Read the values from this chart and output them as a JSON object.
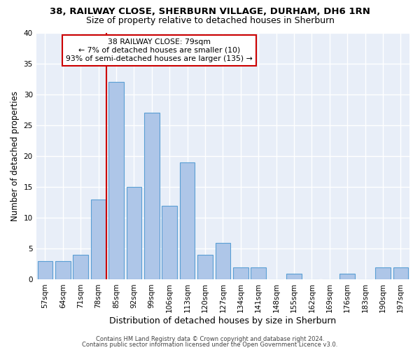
{
  "title1": "38, RAILWAY CLOSE, SHERBURN VILLAGE, DURHAM, DH6 1RN",
  "title2": "Size of property relative to detached houses in Sherburn",
  "xlabel": "Distribution of detached houses by size in Sherburn",
  "ylabel": "Number of detached properties",
  "bar_labels": [
    "57sqm",
    "64sqm",
    "71sqm",
    "78sqm",
    "85sqm",
    "92sqm",
    "99sqm",
    "106sqm",
    "113sqm",
    "120sqm",
    "127sqm",
    "134sqm",
    "141sqm",
    "148sqm",
    "155sqm",
    "162sqm",
    "169sqm",
    "176sqm",
    "183sqm",
    "190sqm",
    "197sqm"
  ],
  "bar_values": [
    3,
    3,
    4,
    13,
    32,
    15,
    27,
    12,
    19,
    4,
    6,
    2,
    2,
    0,
    1,
    0,
    0,
    1,
    0,
    2,
    2
  ],
  "bar_color": "#aec6e8",
  "bar_edge_color": "#5a9fd4",
  "annotation_line1": "38 RAILWAY CLOSE: 79sqm",
  "annotation_line2": "← 7% of detached houses are smaller (10)",
  "annotation_line3": "93% of semi-detached houses are larger (135) →",
  "annotation_box_color": "#ffffff",
  "annotation_box_edge_color": "#cc0000",
  "vline_x": 3.45,
  "vline_color": "#cc0000",
  "ylim": [
    0,
    40
  ],
  "yticks": [
    0,
    5,
    10,
    15,
    20,
    25,
    30,
    35,
    40
  ],
  "bg_color": "#e8eef8",
  "grid_color": "#ffffff",
  "footer_text1": "Contains HM Land Registry data © Crown copyright and database right 2024.",
  "footer_text2": "Contains public sector information licensed under the Open Government Licence v3.0.",
  "title1_fontsize": 9.5,
  "title2_fontsize": 9,
  "xlabel_fontsize": 9,
  "ylabel_fontsize": 8.5,
  "tick_fontsize": 7.5,
  "footer_fontsize": 6.0
}
